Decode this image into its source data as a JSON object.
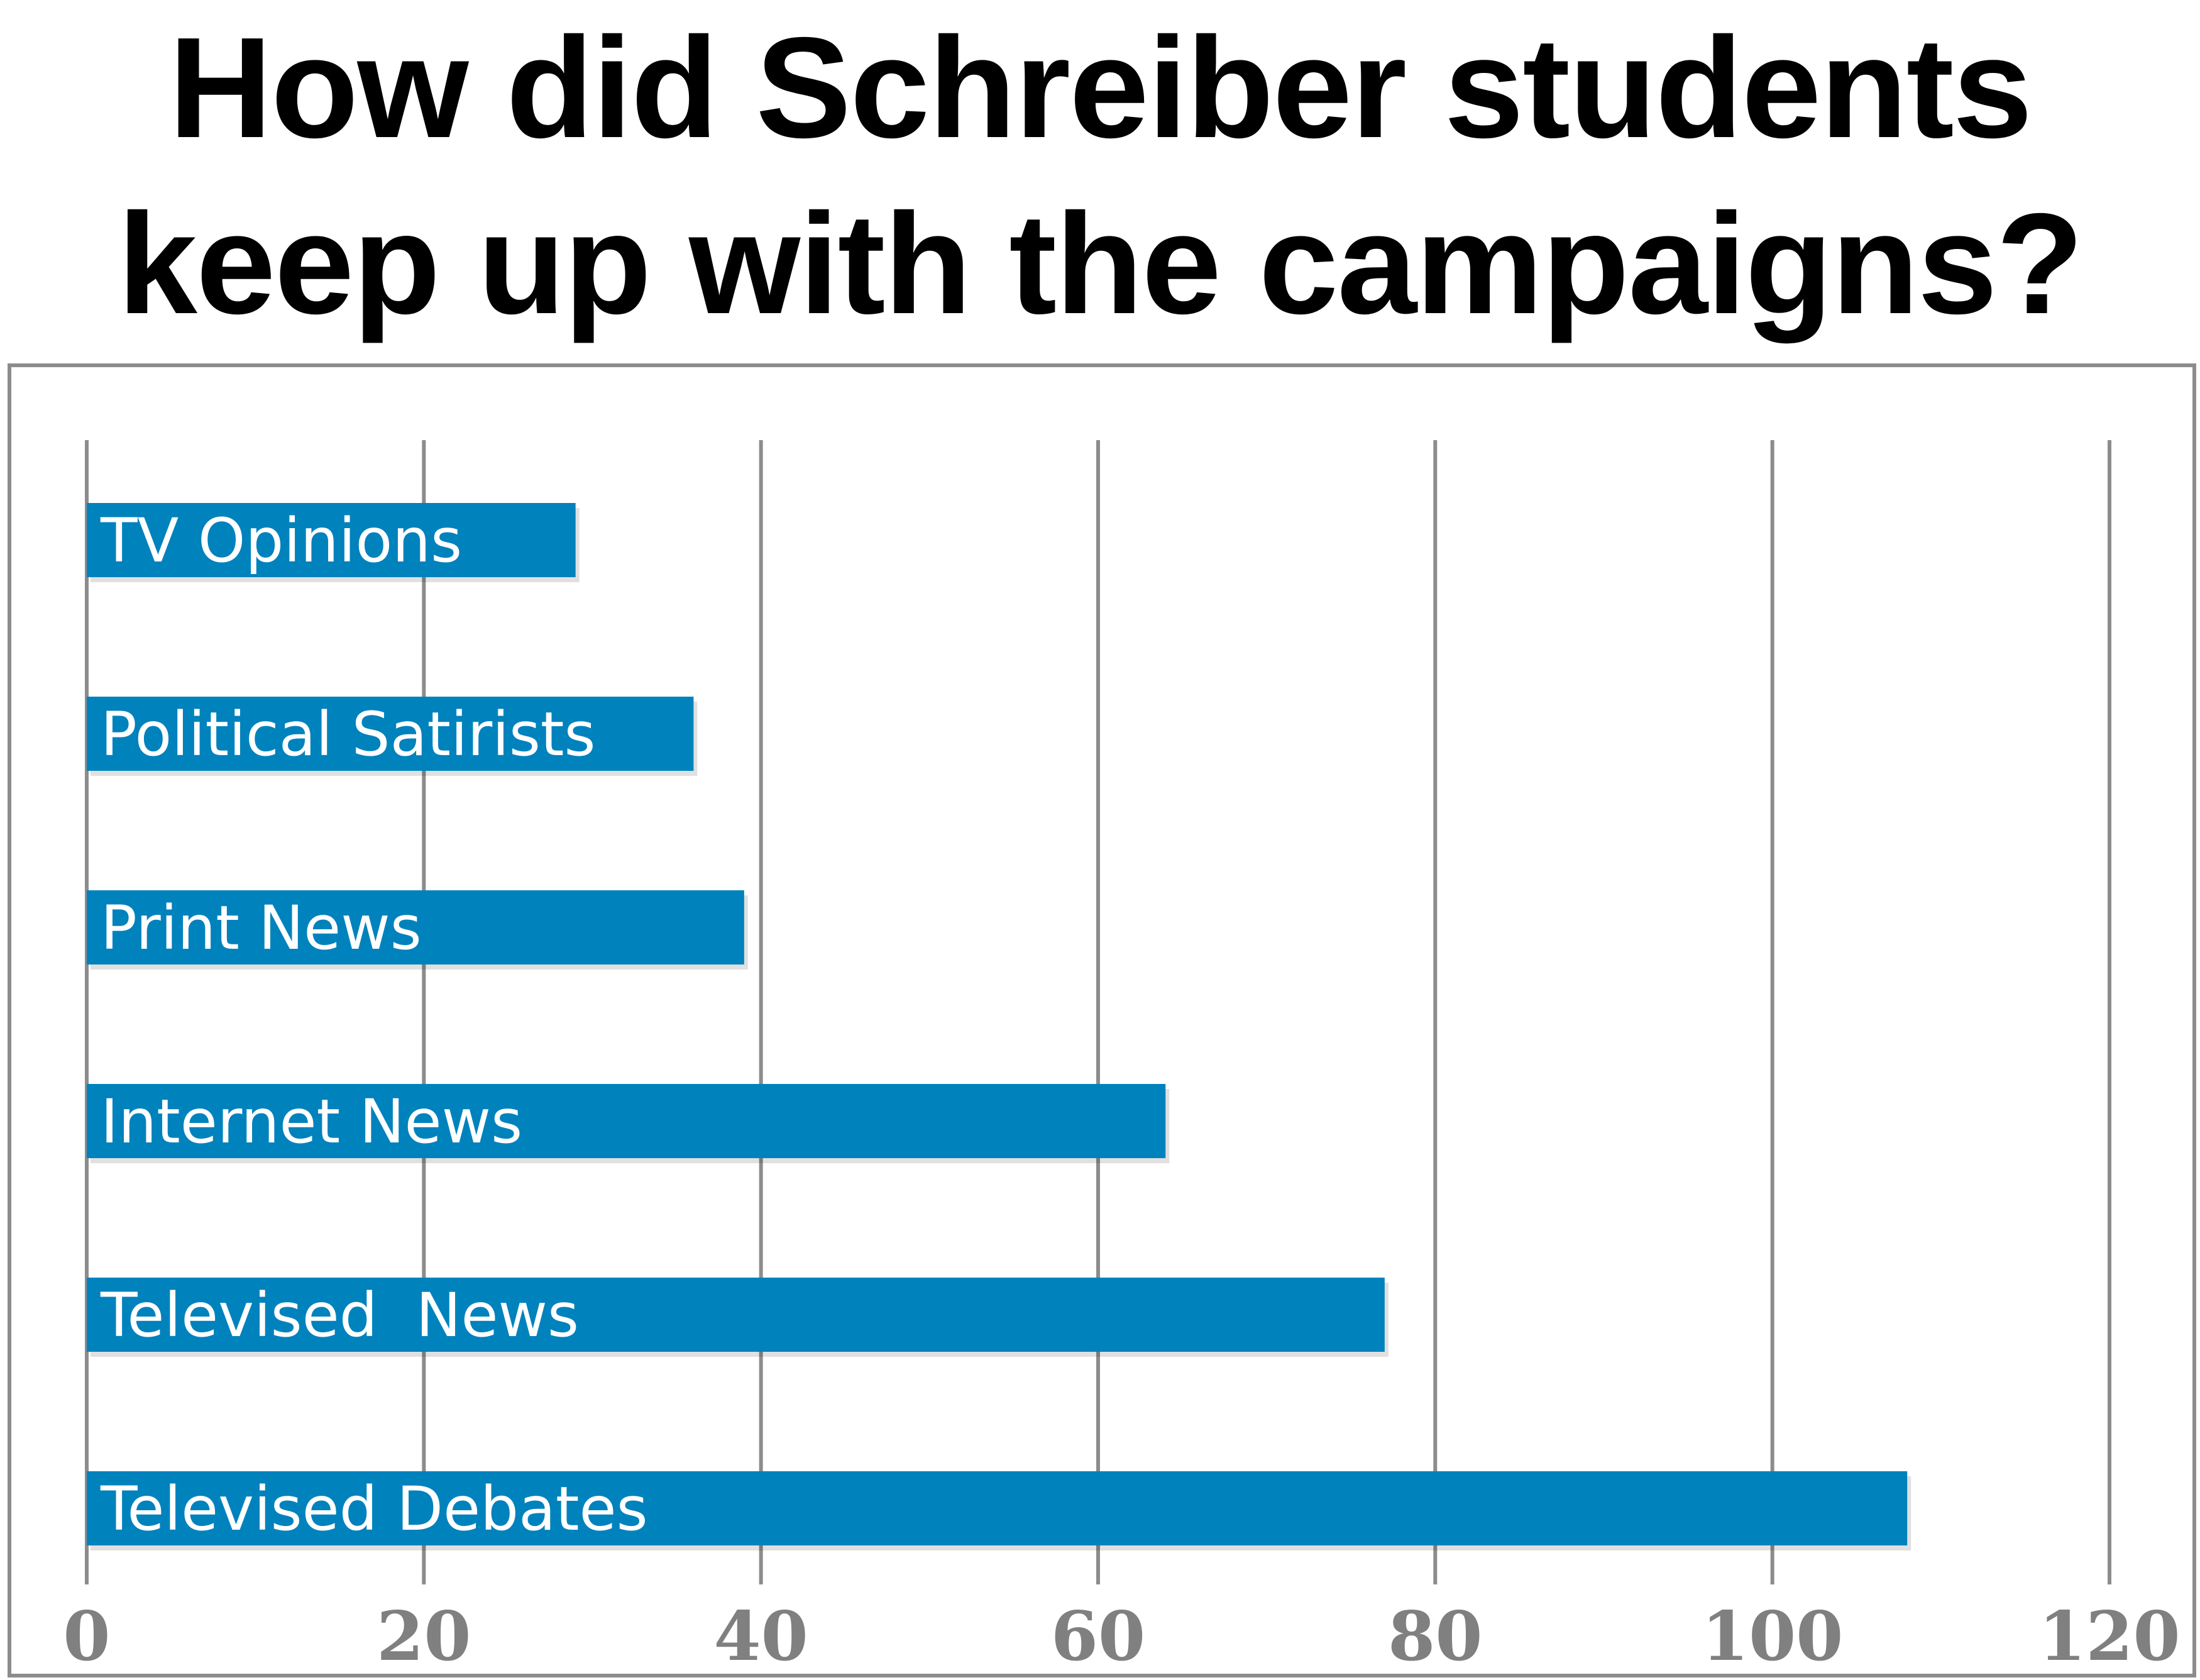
{
  "title_lines": [
    "How did Schreiber students",
    "keep up with the campaigns?"
  ],
  "colors": {
    "bar": "#0082bd",
    "grid": "#8c8c8c",
    "tick_label": "#808080",
    "bar_label": "#ffffff",
    "title": "#000000"
  },
  "chart_data": {
    "type": "bar",
    "orientation": "horizontal",
    "title": "How did Schreiber students keep up with the campaigns?",
    "categories": [
      "TV Opinions",
      "Political Satirists",
      "Print News",
      "Internet News",
      "Televised  News",
      "Televised Debates"
    ],
    "values": [
      29,
      36,
      39,
      64,
      77,
      108
    ],
    "xlim": [
      0,
      120
    ],
    "xticks": [
      0,
      20,
      40,
      60,
      80,
      100,
      120
    ],
    "grid": true,
    "legend": "none",
    "labels_inside_bars": true
  }
}
